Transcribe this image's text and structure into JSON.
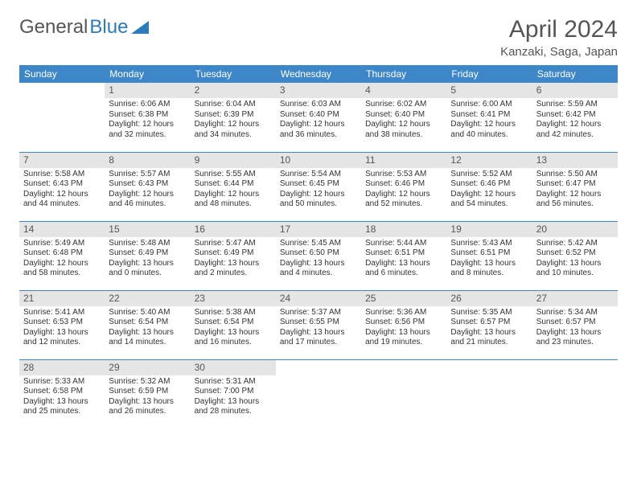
{
  "logo": {
    "text1": "General",
    "text2": "Blue"
  },
  "title": "April 2024",
  "location": "Kanzaki, Saga, Japan",
  "colors": {
    "header_bg": "#3d87c9",
    "header_text": "#ffffff",
    "daynum_bg": "#e5e5e5",
    "row_divider": "#3d87c9",
    "logo_blue": "#2b7bbf",
    "body_text": "#333333",
    "title_text": "#555555",
    "background": "#ffffff"
  },
  "typography": {
    "title_fontsize": 30,
    "location_fontsize": 15,
    "weekday_fontsize": 12,
    "daynum_fontsize": 12,
    "cell_fontsize": 10,
    "logo_fontsize": 24
  },
  "weekdays": [
    "Sunday",
    "Monday",
    "Tuesday",
    "Wednesday",
    "Thursday",
    "Friday",
    "Saturday"
  ],
  "weeks": [
    [
      null,
      {
        "n": "1",
        "sr": "Sunrise: 6:06 AM",
        "ss": "Sunset: 6:38 PM",
        "d1": "Daylight: 12 hours",
        "d2": "and 32 minutes."
      },
      {
        "n": "2",
        "sr": "Sunrise: 6:04 AM",
        "ss": "Sunset: 6:39 PM",
        "d1": "Daylight: 12 hours",
        "d2": "and 34 minutes."
      },
      {
        "n": "3",
        "sr": "Sunrise: 6:03 AM",
        "ss": "Sunset: 6:40 PM",
        "d1": "Daylight: 12 hours",
        "d2": "and 36 minutes."
      },
      {
        "n": "4",
        "sr": "Sunrise: 6:02 AM",
        "ss": "Sunset: 6:40 PM",
        "d1": "Daylight: 12 hours",
        "d2": "and 38 minutes."
      },
      {
        "n": "5",
        "sr": "Sunrise: 6:00 AM",
        "ss": "Sunset: 6:41 PM",
        "d1": "Daylight: 12 hours",
        "d2": "and 40 minutes."
      },
      {
        "n": "6",
        "sr": "Sunrise: 5:59 AM",
        "ss": "Sunset: 6:42 PM",
        "d1": "Daylight: 12 hours",
        "d2": "and 42 minutes."
      }
    ],
    [
      {
        "n": "7",
        "sr": "Sunrise: 5:58 AM",
        "ss": "Sunset: 6:43 PM",
        "d1": "Daylight: 12 hours",
        "d2": "and 44 minutes."
      },
      {
        "n": "8",
        "sr": "Sunrise: 5:57 AM",
        "ss": "Sunset: 6:43 PM",
        "d1": "Daylight: 12 hours",
        "d2": "and 46 minutes."
      },
      {
        "n": "9",
        "sr": "Sunrise: 5:55 AM",
        "ss": "Sunset: 6:44 PM",
        "d1": "Daylight: 12 hours",
        "d2": "and 48 minutes."
      },
      {
        "n": "10",
        "sr": "Sunrise: 5:54 AM",
        "ss": "Sunset: 6:45 PM",
        "d1": "Daylight: 12 hours",
        "d2": "and 50 minutes."
      },
      {
        "n": "11",
        "sr": "Sunrise: 5:53 AM",
        "ss": "Sunset: 6:46 PM",
        "d1": "Daylight: 12 hours",
        "d2": "and 52 minutes."
      },
      {
        "n": "12",
        "sr": "Sunrise: 5:52 AM",
        "ss": "Sunset: 6:46 PM",
        "d1": "Daylight: 12 hours",
        "d2": "and 54 minutes."
      },
      {
        "n": "13",
        "sr": "Sunrise: 5:50 AM",
        "ss": "Sunset: 6:47 PM",
        "d1": "Daylight: 12 hours",
        "d2": "and 56 minutes."
      }
    ],
    [
      {
        "n": "14",
        "sr": "Sunrise: 5:49 AM",
        "ss": "Sunset: 6:48 PM",
        "d1": "Daylight: 12 hours",
        "d2": "and 58 minutes."
      },
      {
        "n": "15",
        "sr": "Sunrise: 5:48 AM",
        "ss": "Sunset: 6:49 PM",
        "d1": "Daylight: 13 hours",
        "d2": "and 0 minutes."
      },
      {
        "n": "16",
        "sr": "Sunrise: 5:47 AM",
        "ss": "Sunset: 6:49 PM",
        "d1": "Daylight: 13 hours",
        "d2": "and 2 minutes."
      },
      {
        "n": "17",
        "sr": "Sunrise: 5:45 AM",
        "ss": "Sunset: 6:50 PM",
        "d1": "Daylight: 13 hours",
        "d2": "and 4 minutes."
      },
      {
        "n": "18",
        "sr": "Sunrise: 5:44 AM",
        "ss": "Sunset: 6:51 PM",
        "d1": "Daylight: 13 hours",
        "d2": "and 6 minutes."
      },
      {
        "n": "19",
        "sr": "Sunrise: 5:43 AM",
        "ss": "Sunset: 6:51 PM",
        "d1": "Daylight: 13 hours",
        "d2": "and 8 minutes."
      },
      {
        "n": "20",
        "sr": "Sunrise: 5:42 AM",
        "ss": "Sunset: 6:52 PM",
        "d1": "Daylight: 13 hours",
        "d2": "and 10 minutes."
      }
    ],
    [
      {
        "n": "21",
        "sr": "Sunrise: 5:41 AM",
        "ss": "Sunset: 6:53 PM",
        "d1": "Daylight: 13 hours",
        "d2": "and 12 minutes."
      },
      {
        "n": "22",
        "sr": "Sunrise: 5:40 AM",
        "ss": "Sunset: 6:54 PM",
        "d1": "Daylight: 13 hours",
        "d2": "and 14 minutes."
      },
      {
        "n": "23",
        "sr": "Sunrise: 5:38 AM",
        "ss": "Sunset: 6:54 PM",
        "d1": "Daylight: 13 hours",
        "d2": "and 16 minutes."
      },
      {
        "n": "24",
        "sr": "Sunrise: 5:37 AM",
        "ss": "Sunset: 6:55 PM",
        "d1": "Daylight: 13 hours",
        "d2": "and 17 minutes."
      },
      {
        "n": "25",
        "sr": "Sunrise: 5:36 AM",
        "ss": "Sunset: 6:56 PM",
        "d1": "Daylight: 13 hours",
        "d2": "and 19 minutes."
      },
      {
        "n": "26",
        "sr": "Sunrise: 5:35 AM",
        "ss": "Sunset: 6:57 PM",
        "d1": "Daylight: 13 hours",
        "d2": "and 21 minutes."
      },
      {
        "n": "27",
        "sr": "Sunrise: 5:34 AM",
        "ss": "Sunset: 6:57 PM",
        "d1": "Daylight: 13 hours",
        "d2": "and 23 minutes."
      }
    ],
    [
      {
        "n": "28",
        "sr": "Sunrise: 5:33 AM",
        "ss": "Sunset: 6:58 PM",
        "d1": "Daylight: 13 hours",
        "d2": "and 25 minutes."
      },
      {
        "n": "29",
        "sr": "Sunrise: 5:32 AM",
        "ss": "Sunset: 6:59 PM",
        "d1": "Daylight: 13 hours",
        "d2": "and 26 minutes."
      },
      {
        "n": "30",
        "sr": "Sunrise: 5:31 AM",
        "ss": "Sunset: 7:00 PM",
        "d1": "Daylight: 13 hours",
        "d2": "and 28 minutes."
      },
      null,
      null,
      null,
      null
    ]
  ]
}
